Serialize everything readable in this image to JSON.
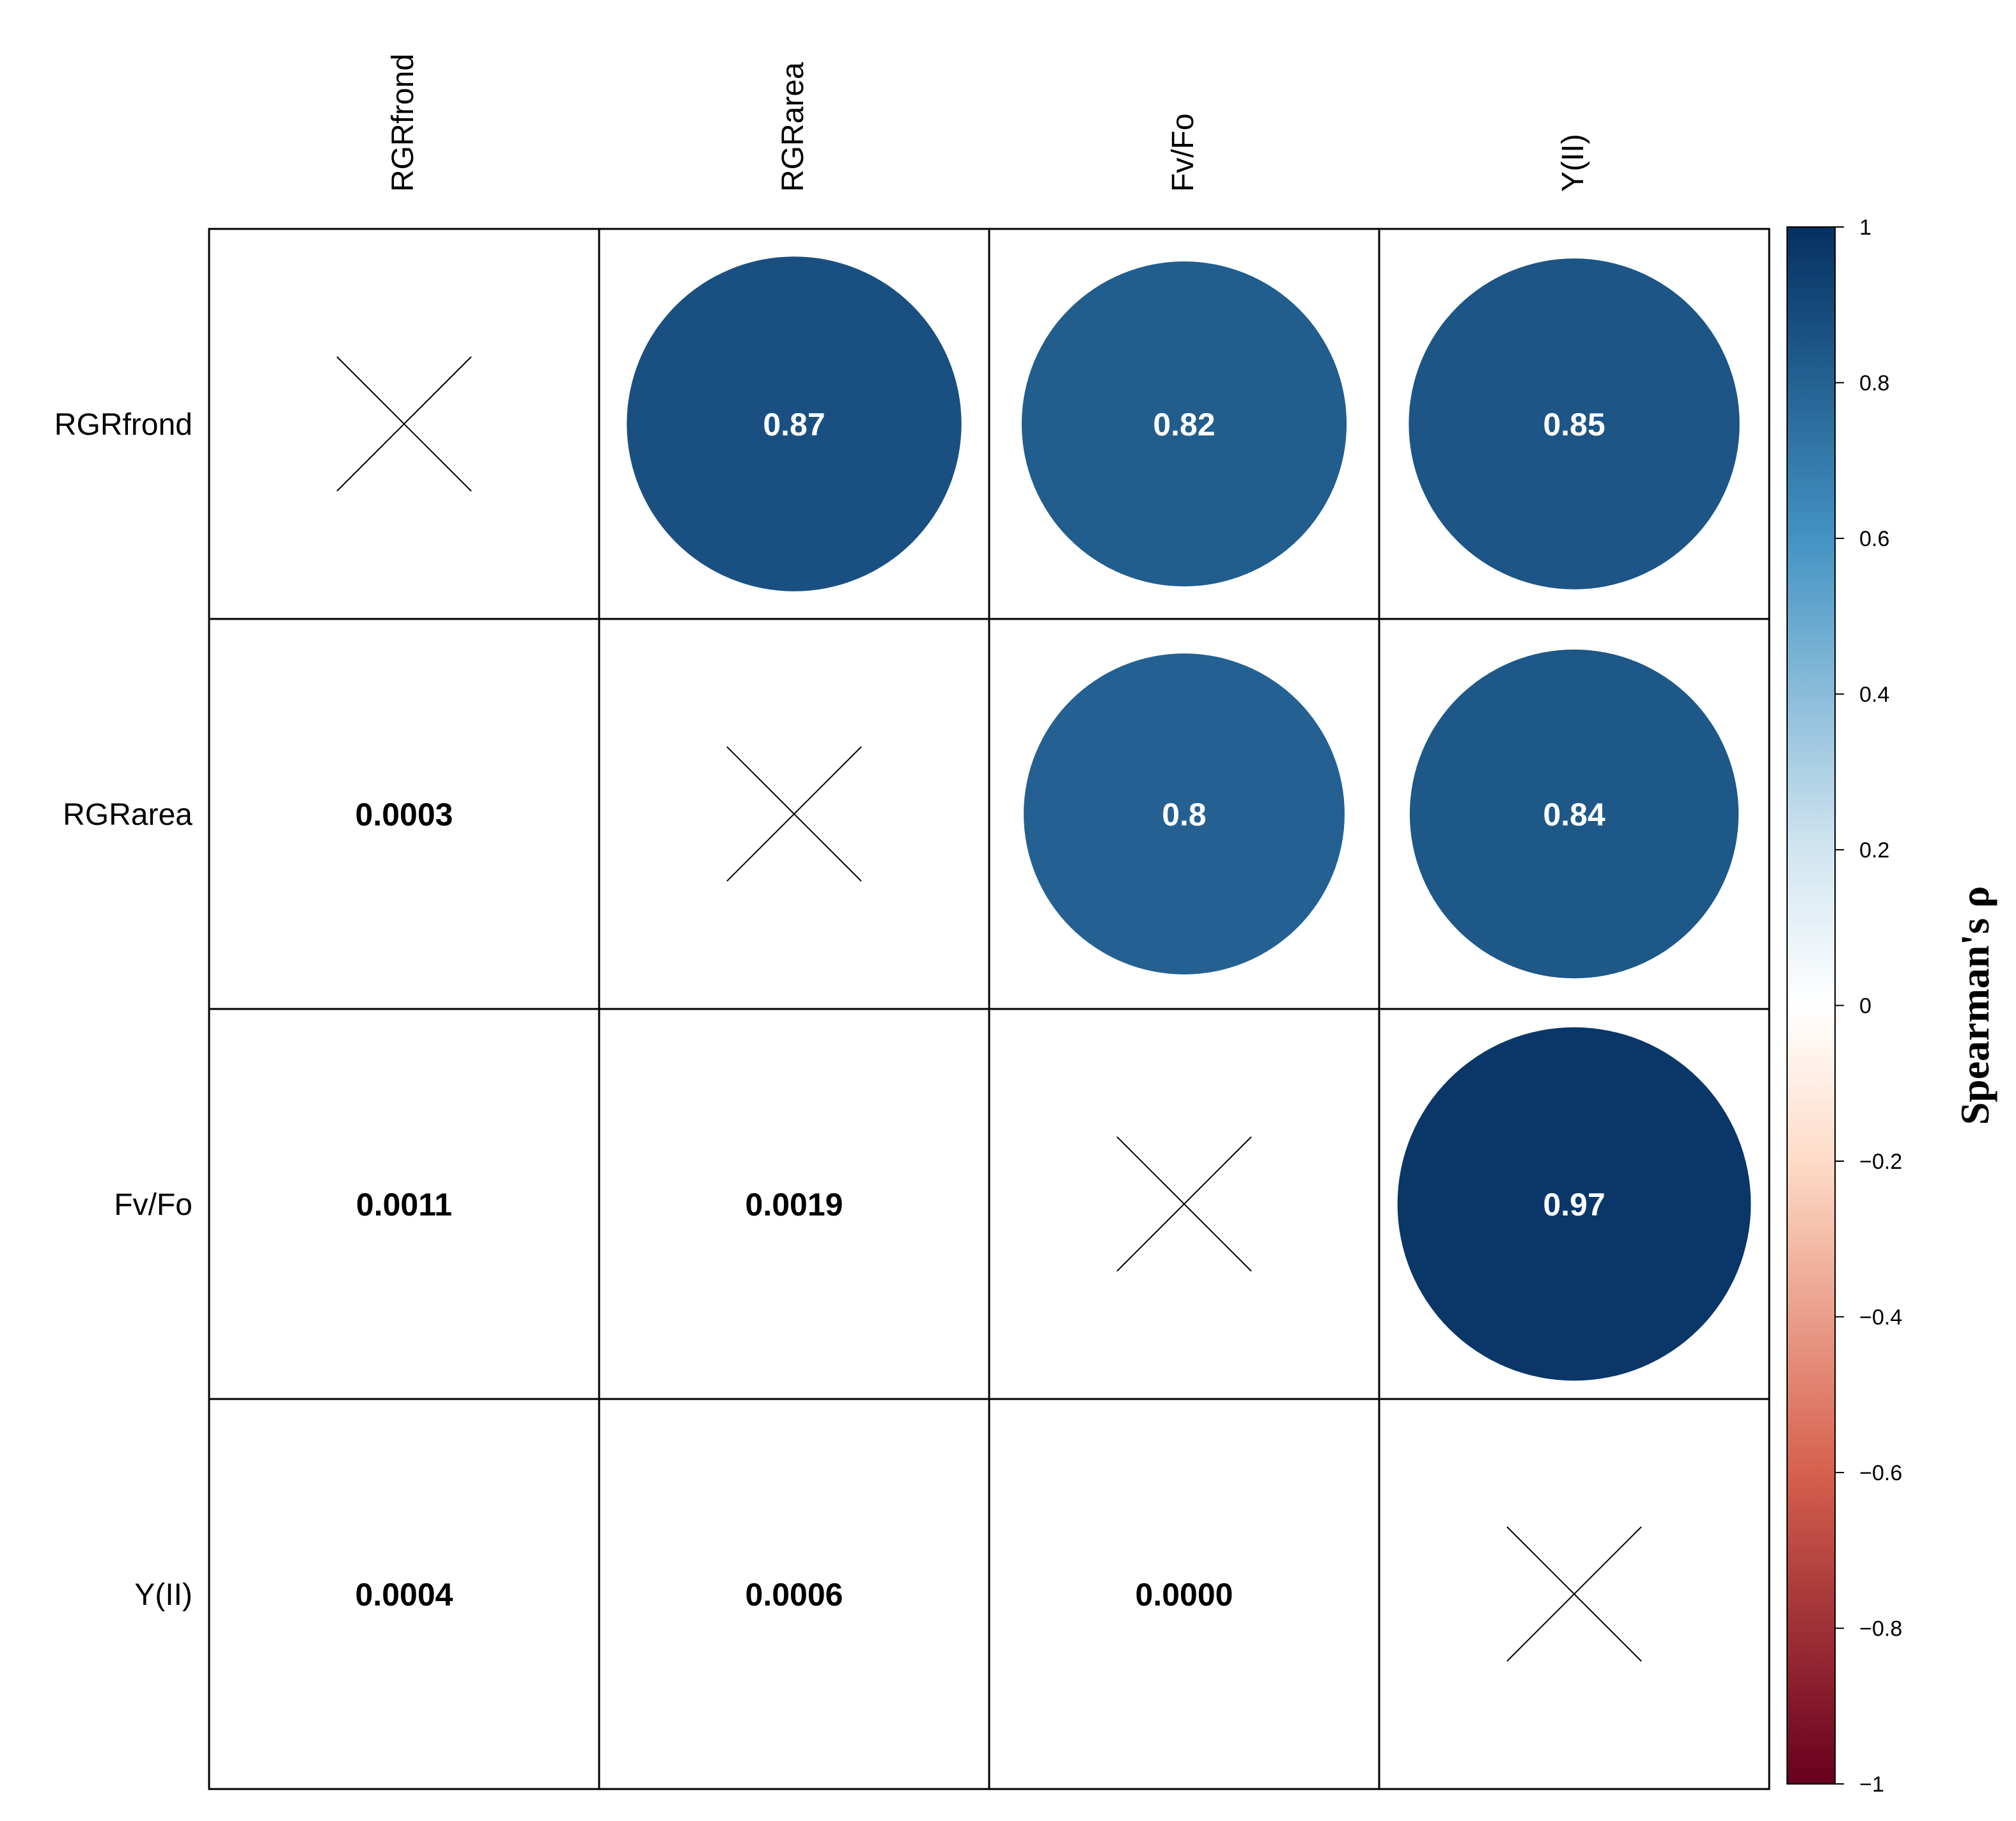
{
  "chart_data": {
    "type": "correlation-matrix",
    "method": "Spearman",
    "variables": [
      "RGRfrond",
      "RGRarea",
      "Fv/Fo",
      "Y(II)"
    ],
    "upper_coefficients": [
      {
        "row": "RGRfrond",
        "col": "RGRarea",
        "value": 0.87,
        "label": "0.87"
      },
      {
        "row": "RGRfrond",
        "col": "Fv/Fo",
        "value": 0.82,
        "label": "0.82"
      },
      {
        "row": "RGRfrond",
        "col": "Y(II)",
        "value": 0.85,
        "label": "0.85"
      },
      {
        "row": "RGRarea",
        "col": "Fv/Fo",
        "value": 0.8,
        "label": "0.8"
      },
      {
        "row": "RGRarea",
        "col": "Y(II)",
        "value": 0.84,
        "label": "0.84"
      },
      {
        "row": "Fv/Fo",
        "col": "Y(II)",
        "value": 0.97,
        "label": "0.97"
      }
    ],
    "lower_p_values": [
      {
        "row": "RGRarea",
        "col": "RGRfrond",
        "label": "0.0003"
      },
      {
        "row": "Fv/Fo",
        "col": "RGRfrond",
        "label": "0.0011"
      },
      {
        "row": "Fv/Fo",
        "col": "RGRarea",
        "label": "0.0019"
      },
      {
        "row": "Y(II)",
        "col": "RGRfrond",
        "label": "0.0004"
      },
      {
        "row": "Y(II)",
        "col": "RGRarea",
        "label": "0.0006"
      },
      {
        "row": "Y(II)",
        "col": "Fv/Fo",
        "label": "0.0000"
      }
    ],
    "diagonal": "cross",
    "legend": {
      "title": "Spearman's ρ",
      "range": [
        -1,
        1
      ],
      "ticks": [
        1,
        0.8,
        0.6,
        0.4,
        0.2,
        0,
        -0.2,
        -0.4,
        -0.6,
        -0.8,
        -1
      ],
      "tick_labels": [
        "1",
        "0.8",
        "0.6",
        "0.4",
        "0.2",
        "0",
        "−0.2",
        "−0.4",
        "−0.6",
        "−0.8",
        "−1"
      ],
      "placement": "right"
    },
    "colors": {
      "negative_end": "#67001F",
      "neg_mid": "#D6604D",
      "neg_light": "#FDDBC7",
      "zero": "#FFFFFF",
      "pos_light": "#D1E5F0",
      "pos_mid": "#4393C3",
      "positive_end": "#053061"
    }
  }
}
